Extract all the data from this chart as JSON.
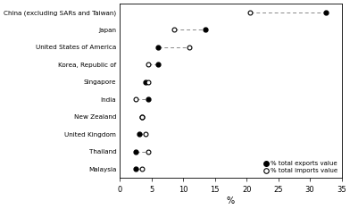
{
  "countries": [
    "China (excluding SARs and Taiwan)",
    "Japan",
    "United States of America",
    "Korea, Republic of",
    "Singapore",
    "India",
    "New Zealand",
    "United Kingdom",
    "Thailand",
    "Malaysia"
  ],
  "exports": [
    32.5,
    13.5,
    6.0,
    6.0,
    4.0,
    4.5,
    3.5,
    3.0,
    2.5,
    2.5
  ],
  "imports": [
    20.5,
    8.5,
    11.0,
    4.5,
    4.5,
    2.5,
    3.5,
    4.0,
    4.5,
    3.5
  ],
  "xlim": [
    0,
    35
  ],
  "xticks": [
    0,
    5,
    10,
    15,
    20,
    25,
    30,
    35
  ],
  "xlabel": "%",
  "dashed_color": "#888888",
  "export_marker_color": "#000000",
  "import_marker_color": "#ffffff",
  "import_marker_edge": "#000000",
  "legend_export_label": "% total exports value",
  "legend_import_label": "% total imports value",
  "bg_color": "#ffffff"
}
